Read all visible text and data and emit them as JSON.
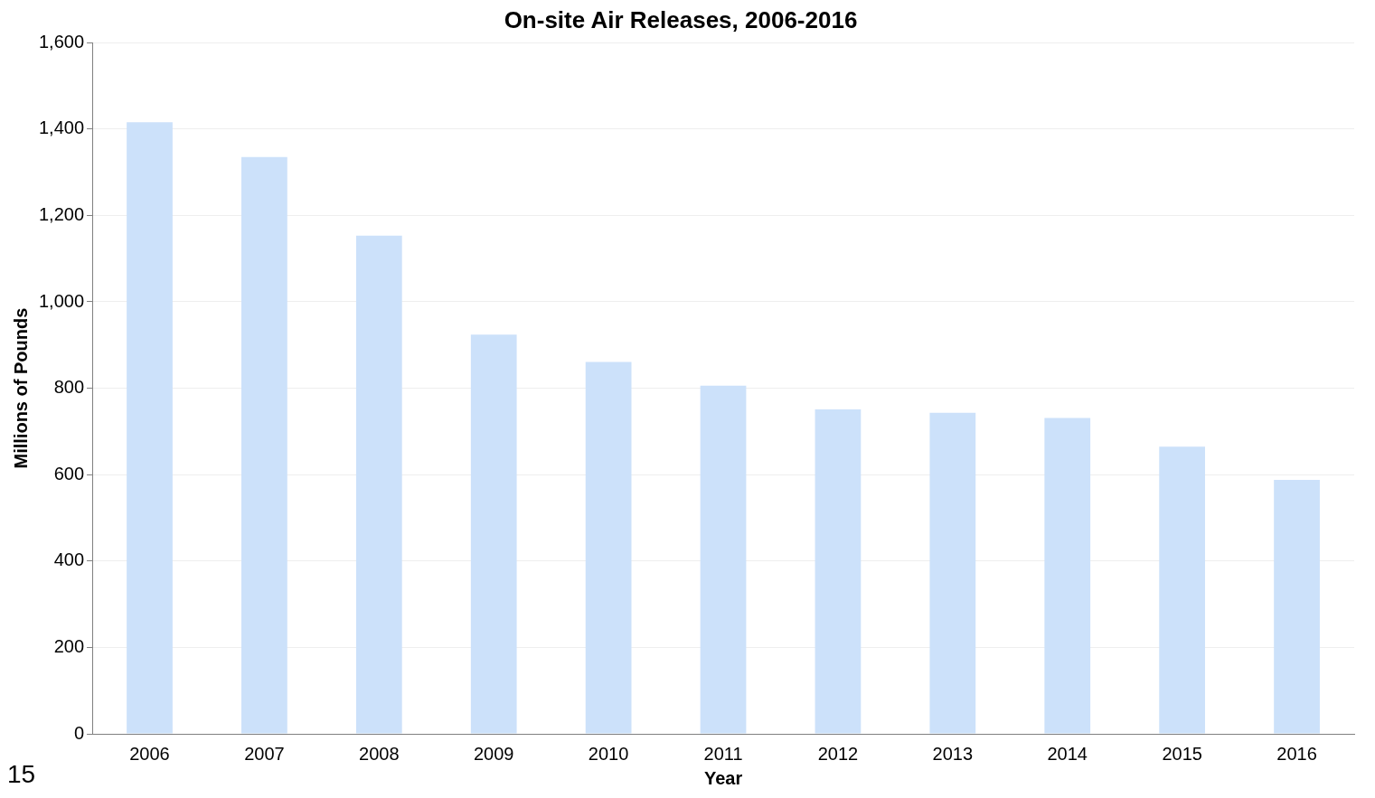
{
  "chart_data": {
    "type": "bar",
    "title": "On-site Air Releases, 2006-2016",
    "xlabel": "Year",
    "ylabel": "Millions of Pounds",
    "categories": [
      "2006",
      "2007",
      "2008",
      "2009",
      "2010",
      "2011",
      "2012",
      "2013",
      "2014",
      "2015",
      "2016"
    ],
    "values": [
      1416,
      1335,
      1153,
      924,
      861,
      806,
      751,
      743,
      731,
      665,
      588
    ],
    "color": "#cce1fa",
    "ylim": [
      0,
      1600
    ],
    "yticks": [
      0,
      200,
      400,
      600,
      {
        "value": 800,
        "label": "800"
      },
      {
        "value": 1000,
        "label": "1,000"
      },
      {
        "value": 1200,
        "label": "1,200"
      },
      {
        "value": 1400,
        "label": "1,400"
      },
      {
        "value": 1600,
        "label": "1,600"
      }
    ],
    "grid": "y",
    "legend": false,
    "annotations": [
      "15"
    ]
  }
}
